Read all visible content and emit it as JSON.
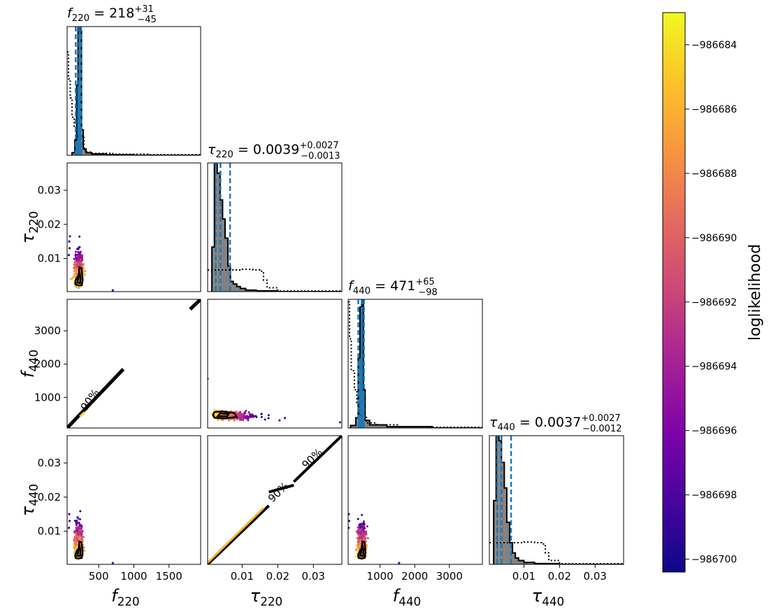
{
  "chart_data": {
    "type": "corner",
    "parameters": [
      {
        "key": "f220",
        "sym": "f",
        "sub": "220",
        "range": [
          50,
          1950
        ],
        "ticks": [
          500,
          1000,
          1500
        ]
      },
      {
        "key": "tau220",
        "sym": "τ",
        "sub": "220",
        "range": [
          0.0003,
          0.038
        ],
        "ticks": [
          0.01,
          0.02,
          0.03
        ]
      },
      {
        "key": "f440",
        "sym": "f",
        "sub": "440",
        "range": [
          80,
          3950
        ],
        "ticks": [
          1000,
          2000,
          3000
        ]
      },
      {
        "key": "tau440",
        "sym": "τ",
        "sub": "440",
        "range": [
          0.0003,
          0.038
        ],
        "ticks": [
          0.01,
          0.02,
          0.03
        ]
      }
    ],
    "diagonal_titles": [
      {
        "param": "f220",
        "median": "218",
        "plus": "+31",
        "minus": "−45"
      },
      {
        "param": "tau220",
        "median": "0.0039",
        "plus": "+0.0027",
        "minus": "−0.0013"
      },
      {
        "param": "f440",
        "median": "471",
        "plus": "+65",
        "minus": "−98"
      },
      {
        "param": "tau440",
        "median": "0.0037",
        "plus": "+0.0027",
        "minus": "−0.0012"
      }
    ],
    "tick_labels": {
      "f220": [
        "500",
        "1000",
        "1500"
      ],
      "tau220": [
        "0.01",
        "0.02",
        "0.03"
      ],
      "f440": [
        "1000",
        "2000",
        "3000"
      ],
      "tau440": [
        "0.01",
        "0.02",
        "0.03"
      ]
    },
    "quantile_lines": {
      "f220": [
        173,
        218,
        249
      ],
      "tau220": [
        0.0026,
        0.0039,
        0.0066
      ],
      "f440": [
        373,
        471,
        536
      ],
      "tau440": [
        0.0025,
        0.0037,
        0.0064
      ]
    },
    "histograms": {
      "f220": {
        "bins": [
          [
            120,
            160,
            0.02
          ],
          [
            160,
            185,
            0.12
          ],
          [
            185,
            205,
            0.55
          ],
          [
            205,
            230,
            1.0
          ],
          [
            230,
            255,
            0.98
          ],
          [
            255,
            280,
            0.2
          ],
          [
            280,
            320,
            0.05
          ],
          [
            320,
            400,
            0.02
          ],
          [
            400,
            600,
            0.01
          ],
          [
            600,
            1000,
            0.004
          ]
        ]
      },
      "tau220": {
        "bins": [
          [
            0.0015,
            0.0022,
            0.35
          ],
          [
            0.0022,
            0.003,
            1.0
          ],
          [
            0.003,
            0.0038,
            0.93
          ],
          [
            0.0038,
            0.0045,
            0.72
          ],
          [
            0.0045,
            0.0052,
            0.57
          ],
          [
            0.0052,
            0.006,
            0.42
          ],
          [
            0.006,
            0.0067,
            0.2
          ],
          [
            0.0067,
            0.0075,
            0.08
          ],
          [
            0.0075,
            0.0085,
            0.06
          ],
          [
            0.0085,
            0.0095,
            0.04
          ],
          [
            0.0095,
            0.011,
            0.025
          ],
          [
            0.011,
            0.014,
            0.012
          ],
          [
            0.014,
            0.02,
            0.006
          ]
        ]
      },
      "f440": {
        "bins": [
          [
            150,
            300,
            0.02
          ],
          [
            300,
            370,
            0.08
          ],
          [
            370,
            420,
            0.55
          ],
          [
            420,
            470,
            0.95
          ],
          [
            470,
            520,
            1.0
          ],
          [
            520,
            570,
            0.3
          ],
          [
            570,
            700,
            0.06
          ],
          [
            700,
            1200,
            0.025
          ],
          [
            1200,
            2500,
            0.01
          ]
        ]
      },
      "tau440": {
        "bins": [
          [
            0.0015,
            0.0022,
            0.5
          ],
          [
            0.0022,
            0.003,
            1.0
          ],
          [
            0.003,
            0.0037,
            0.97
          ],
          [
            0.0037,
            0.0045,
            0.8
          ],
          [
            0.0045,
            0.0052,
            0.6
          ],
          [
            0.0052,
            0.006,
            0.33
          ],
          [
            0.006,
            0.0068,
            0.17
          ],
          [
            0.0068,
            0.0076,
            0.09
          ],
          [
            0.0076,
            0.0085,
            0.05
          ],
          [
            0.0085,
            0.01,
            0.03
          ],
          [
            0.01,
            0.013,
            0.015
          ],
          [
            0.013,
            0.02,
            0.006
          ]
        ]
      }
    },
    "priors": {
      "f220": [
        [
          50,
          0.81
        ],
        [
          70,
          0.6
        ],
        [
          95,
          0.45
        ],
        [
          120,
          0.3
        ],
        [
          150,
          0.22
        ],
        [
          175,
          0.15
        ],
        [
          290,
          0.04
        ],
        [
          330,
          0.025
        ],
        [
          400,
          0.015
        ],
        [
          700,
          0.008
        ],
        [
          1200,
          0.004
        ],
        [
          1950,
          0.003
        ]
      ],
      "tau220": [
        [
          0.0003,
          0.17
        ],
        [
          0.008,
          0.17
        ],
        [
          0.01,
          0.175
        ],
        [
          0.013,
          0.17
        ],
        [
          0.015,
          0.16
        ],
        [
          0.016,
          0.09
        ],
        [
          0.017,
          0.03
        ],
        [
          0.02,
          0.005
        ],
        [
          0.038,
          0.005
        ]
      ],
      "f440": [
        [
          80,
          0.99
        ],
        [
          120,
          0.7
        ],
        [
          170,
          0.45
        ],
        [
          260,
          0.3
        ],
        [
          330,
          0.2
        ],
        [
          390,
          0.1
        ],
        [
          600,
          0.04
        ],
        [
          900,
          0.025
        ],
        [
          1500,
          0.01
        ],
        [
          2500,
          0.006
        ],
        [
          3950,
          0.004
        ]
      ],
      "tau440": [
        [
          0.0003,
          0.17
        ],
        [
          0.008,
          0.17
        ],
        [
          0.01,
          0.175
        ],
        [
          0.013,
          0.17
        ],
        [
          0.015,
          0.16
        ],
        [
          0.016,
          0.09
        ],
        [
          0.017,
          0.03
        ],
        [
          0.02,
          0.005
        ],
        [
          0.038,
          0.005
        ]
      ]
    },
    "contour_label": "90%",
    "colorbar": {
      "label": "loglikelihood",
      "range": [
        -986700.4,
        -986683.0
      ],
      "ticks": [
        -986684,
        -986686,
        -986688,
        -986690,
        -986692,
        -986694,
        -986696,
        -986698,
        -986700
      ],
      "tick_labels": [
        "−986684",
        "−986686",
        "−986688",
        "−986690",
        "−986692",
        "−986694",
        "−986696",
        "−986698",
        "−986700"
      ],
      "colormap": "plasma"
    }
  }
}
